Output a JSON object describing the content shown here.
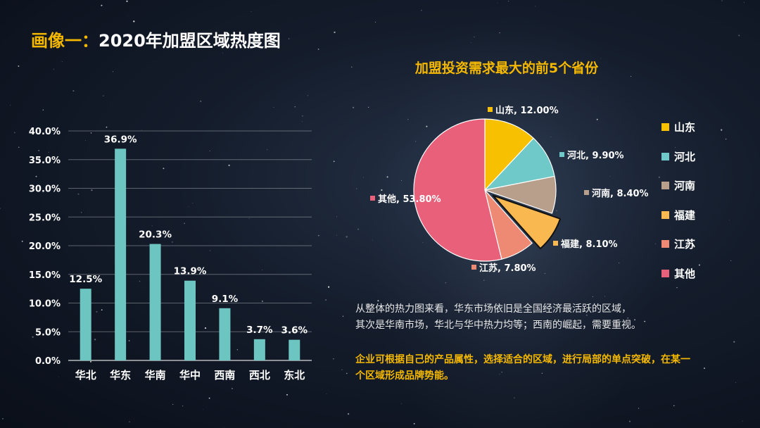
{
  "page": {
    "title_highlight": "画像一：",
    "title_rest": "2020年加盟区域热度图"
  },
  "chart_data": [
    {
      "type": "bar",
      "categories": [
        "华北",
        "华东",
        "华南",
        "华中",
        "西南",
        "西北",
        "东北"
      ],
      "values": [
        12.5,
        36.9,
        20.3,
        13.9,
        9.1,
        3.7,
        3.6
      ],
      "value_labels": [
        "12.5%",
        "36.9%",
        "20.3%",
        "13.9%",
        "9.1%",
        "3.7%",
        "3.6%"
      ],
      "yticks": [
        "0.0%",
        "5.0%",
        "10.0%",
        "15.0%",
        "20.0%",
        "25.0%",
        "30.0%",
        "35.0%",
        "40.0%"
      ],
      "ylim": [
        0,
        40
      ],
      "grid": true,
      "color": "#6cc5c1"
    },
    {
      "type": "pie",
      "title": "加盟投资需求最大的前5个省份",
      "categories": [
        "山东",
        "河北",
        "河南",
        "福建",
        "江苏",
        "其他"
      ],
      "values": [
        12.0,
        9.9,
        8.4,
        8.1,
        7.8,
        53.8
      ],
      "data_labels": [
        "山东, 12.00%",
        "河北, 9.90%",
        "河南, 8.40%",
        "福建, 8.10%",
        "江苏, 7.80%",
        "其他, 53.80%"
      ],
      "colors": [
        "#f7c000",
        "#6ec9c8",
        "#b79f8c",
        "#f9b950",
        "#ee8a74",
        "#e8607a"
      ],
      "exploded": "福建",
      "legend": "right"
    }
  ],
  "text": {
    "summary_lines": [
      "从整体的热力图来看，华东市场依旧是全国经济最活跃的区域，",
      "其次是华南市场，华北与华中热力均等；西南的崛起，需要重视。"
    ],
    "advice_lines": [
      "企业可根据自己的产品属性，选择适合的区域，进行局部的单点突破，在某一",
      "个区域形成品牌势能。"
    ]
  }
}
